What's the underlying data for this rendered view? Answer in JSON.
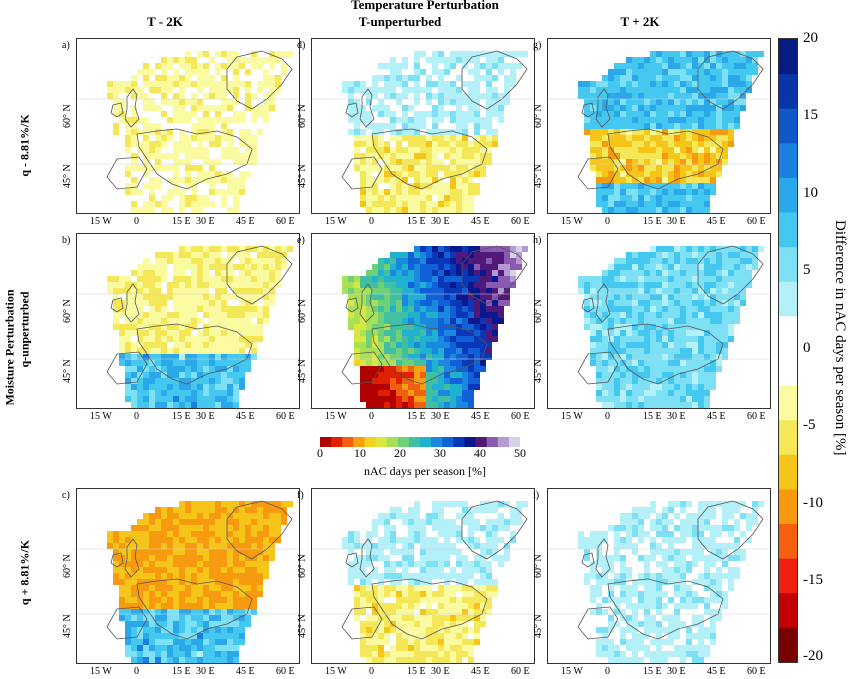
{
  "header": {
    "top_title": "Temperature Perturbation",
    "col1": "T - 2K",
    "col2": "T-unperturbed",
    "col3": "T + 2K"
  },
  "rows": {
    "side_title": "Moisture Perturbation",
    "row1": "q - 8.81%/K",
    "row2": "q-unperturbed",
    "row3": "q + 8.81%/K"
  },
  "panels": [
    {
      "label": "a)",
      "mean_change": -3
    },
    {
      "label": "d)",
      "mean_change": 3
    },
    {
      "label": "g)",
      "mean_change": 8
    },
    {
      "label": "b)",
      "mean_change": -4
    },
    {
      "label": "e)",
      "mean_change": 30
    },
    {
      "label": "h)",
      "mean_change": 6
    },
    {
      "label": "c)",
      "mean_change": -9
    },
    {
      "label": "f)",
      "mean_change": 3
    },
    {
      "label": "i)",
      "mean_change": 3
    }
  ],
  "axes": {
    "lat_labels": [
      "60° N",
      "45° N"
    ],
    "lon_labels": [
      "15 W",
      "0",
      "15 E",
      "30 E",
      "45 E",
      "60 E"
    ]
  },
  "colorbar": {
    "title": "Difference in nAC days per season [%]",
    "ticks": [
      "20",
      "15",
      "10",
      "5",
      "0",
      "-5",
      "-10",
      "-15",
      "-20"
    ],
    "range": [
      -20,
      20
    ]
  },
  "hbar": {
    "title": "nAC days per season [%]",
    "ticks": [
      "0",
      "10",
      "20",
      "30",
      "40",
      "50"
    ],
    "range": [
      0,
      50
    ]
  },
  "colors": {
    "diverging": [
      "#7a0000",
      "#c40000",
      "#f02010",
      "#f56010",
      "#f79a10",
      "#f5c51a",
      "#f5e858",
      "#fafaa0",
      "#ffffff",
      "#ffffff",
      "#b3f0f8",
      "#7de0f5",
      "#45c8f0",
      "#2aa8ea",
      "#1a80e0",
      "#1058c8",
      "#0835a8",
      "#061c80"
    ],
    "sequential": [
      "#b00000",
      "#e02000",
      "#f06010",
      "#f5a010",
      "#f5d020",
      "#d8e840",
      "#a8e058",
      "#70d078",
      "#40c0a0",
      "#20b0d0",
      "#1a88e0",
      "#1060d8",
      "#0838b8",
      "#0a1890",
      "#501878",
      "#8a5ab0",
      "#b39ad0",
      "#d8d0e8"
    ]
  }
}
